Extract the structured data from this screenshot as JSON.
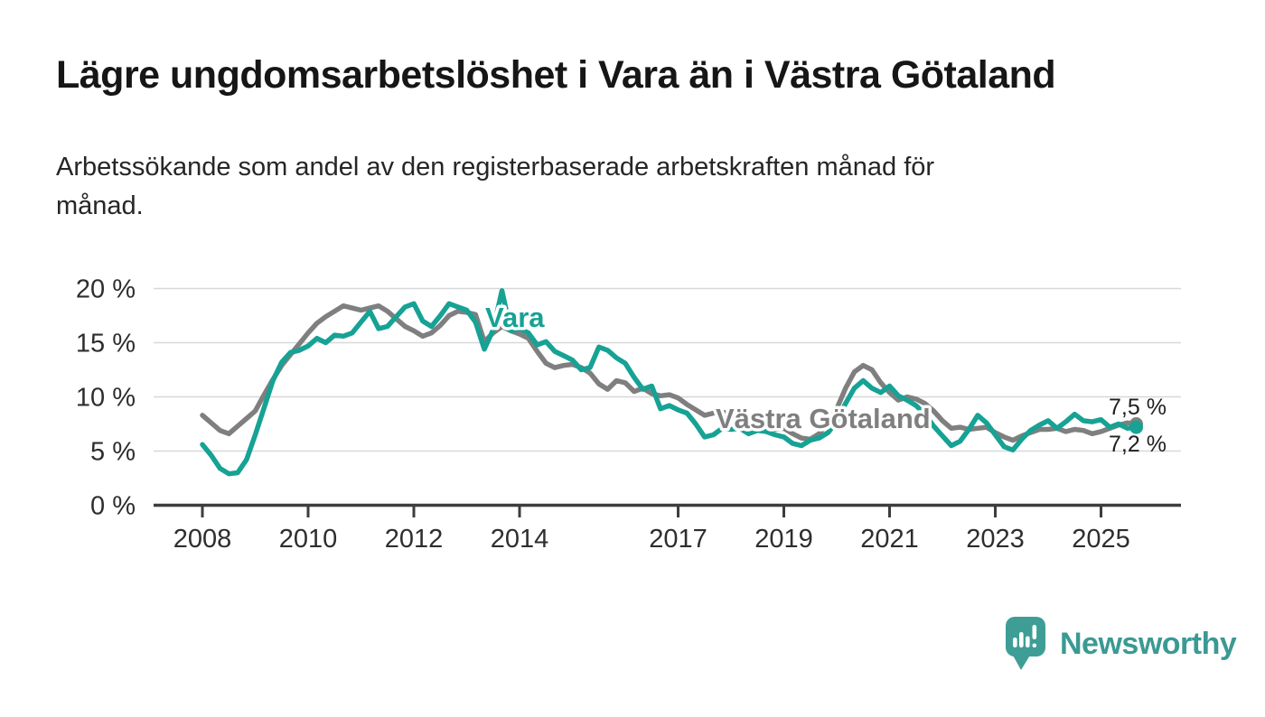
{
  "header": {
    "title": "Lägre ungdomsarbetslöshet i Vara än i Västra Götaland",
    "subtitle_line1": "Arbetssökande som andel av den registerbaserade arbetskraften månad för",
    "subtitle_line2": "månad."
  },
  "chart_data": {
    "type": "line",
    "unit": "%",
    "x_start_year": 2008,
    "x_step_months": 2,
    "x_end": "2025-09",
    "x_ticks": [
      2008,
      2010,
      2012,
      2014,
      2017,
      2019,
      2021,
      2023,
      2025
    ],
    "y_ticks": [
      {
        "value": 0,
        "label": "0 %"
      },
      {
        "value": 5,
        "label": "5 %"
      },
      {
        "value": 10,
        "label": "10 %"
      },
      {
        "value": 15,
        "label": "15 %"
      },
      {
        "value": 20,
        "label": "20 %"
      }
    ],
    "ylim": [
      0,
      20.5
    ],
    "grid": "horizontal",
    "legend_position": "inline-labels",
    "series": [
      {
        "id": "vastra-gotaland",
        "name": "Västra Götaland",
        "color": "#7f7f7f",
        "end_label": "7,5 %",
        "end_value": 7.5,
        "values": [
          8.3,
          7.6,
          6.9,
          6.6,
          7.3,
          8.0,
          8.7,
          10.2,
          11.6,
          12.9,
          13.9,
          14.9,
          15.9,
          16.8,
          17.4,
          17.9,
          18.4,
          18.2,
          18.0,
          18.2,
          18.4,
          17.9,
          17.2,
          16.5,
          16.1,
          15.6,
          15.9,
          16.6,
          17.5,
          17.9,
          17.8,
          17.6,
          15.1,
          15.9,
          16.5,
          16.1,
          15.8,
          15.4,
          14.2,
          13.1,
          12.7,
          12.9,
          13.0,
          12.7,
          12.2,
          11.2,
          10.7,
          11.5,
          11.3,
          10.5,
          10.8,
          10.3,
          10.1,
          10.2,
          9.9,
          9.3,
          8.8,
          8.3,
          8.5,
          8.6,
          8.4,
          8.6,
          8.2,
          7.8,
          7.3,
          7.0,
          7.1,
          6.6,
          6.2,
          6.1,
          6.6,
          7.6,
          8.9,
          10.8,
          12.3,
          12.9,
          12.5,
          11.3,
          10.4,
          9.7,
          10.0,
          9.8,
          9.4,
          8.7,
          7.8,
          7.1,
          7.2,
          7.0,
          7.1,
          7.2,
          6.7,
          6.3,
          6.0,
          6.4,
          6.7,
          7.0,
          7.0,
          7.1,
          6.8,
          7.0,
          6.9,
          6.6,
          6.8,
          7.1,
          7.4,
          7.6,
          7.5
        ]
      },
      {
        "id": "vara",
        "name": "Vara",
        "color": "#16a294",
        "end_label": "7,2 %",
        "end_value": 7.2,
        "values": [
          5.6,
          4.6,
          3.4,
          2.9,
          3.0,
          4.2,
          6.5,
          9.0,
          11.5,
          13.2,
          14.1,
          14.3,
          14.7,
          15.4,
          15.0,
          15.7,
          15.6,
          15.9,
          16.9,
          17.9,
          16.3,
          16.5,
          17.4,
          18.3,
          18.6,
          17.0,
          16.5,
          17.5,
          18.6,
          18.3,
          18.0,
          16.9,
          14.4,
          16.2,
          19.8,
          16.1,
          16.3,
          15.9,
          14.8,
          15.1,
          14.2,
          13.8,
          13.4,
          12.5,
          12.7,
          14.6,
          14.3,
          13.6,
          13.1,
          11.8,
          10.7,
          11.0,
          8.9,
          9.2,
          8.8,
          8.5,
          7.5,
          6.3,
          6.5,
          7.1,
          7.0,
          7.1,
          6.6,
          6.9,
          6.8,
          6.5,
          6.3,
          5.7,
          5.5,
          6.0,
          6.2,
          6.7,
          7.7,
          9.4,
          10.8,
          11.5,
          10.8,
          10.4,
          11.0,
          10.1,
          9.7,
          9.2,
          8.4,
          7.3,
          6.4,
          5.5,
          5.9,
          7.0,
          8.3,
          7.6,
          6.5,
          5.4,
          5.1,
          6.1,
          6.9,
          7.4,
          7.8,
          7.1,
          7.7,
          8.4,
          7.8,
          7.7,
          7.9,
          7.2,
          7.5,
          7.1,
          7.2
        ]
      }
    ]
  },
  "footer": {
    "brand": "Newsworthy",
    "brand_color": "#3a9a93",
    "logo_color": "#3e9e96",
    "logo_icon": "speech-bubble-bar-chart-icon"
  }
}
